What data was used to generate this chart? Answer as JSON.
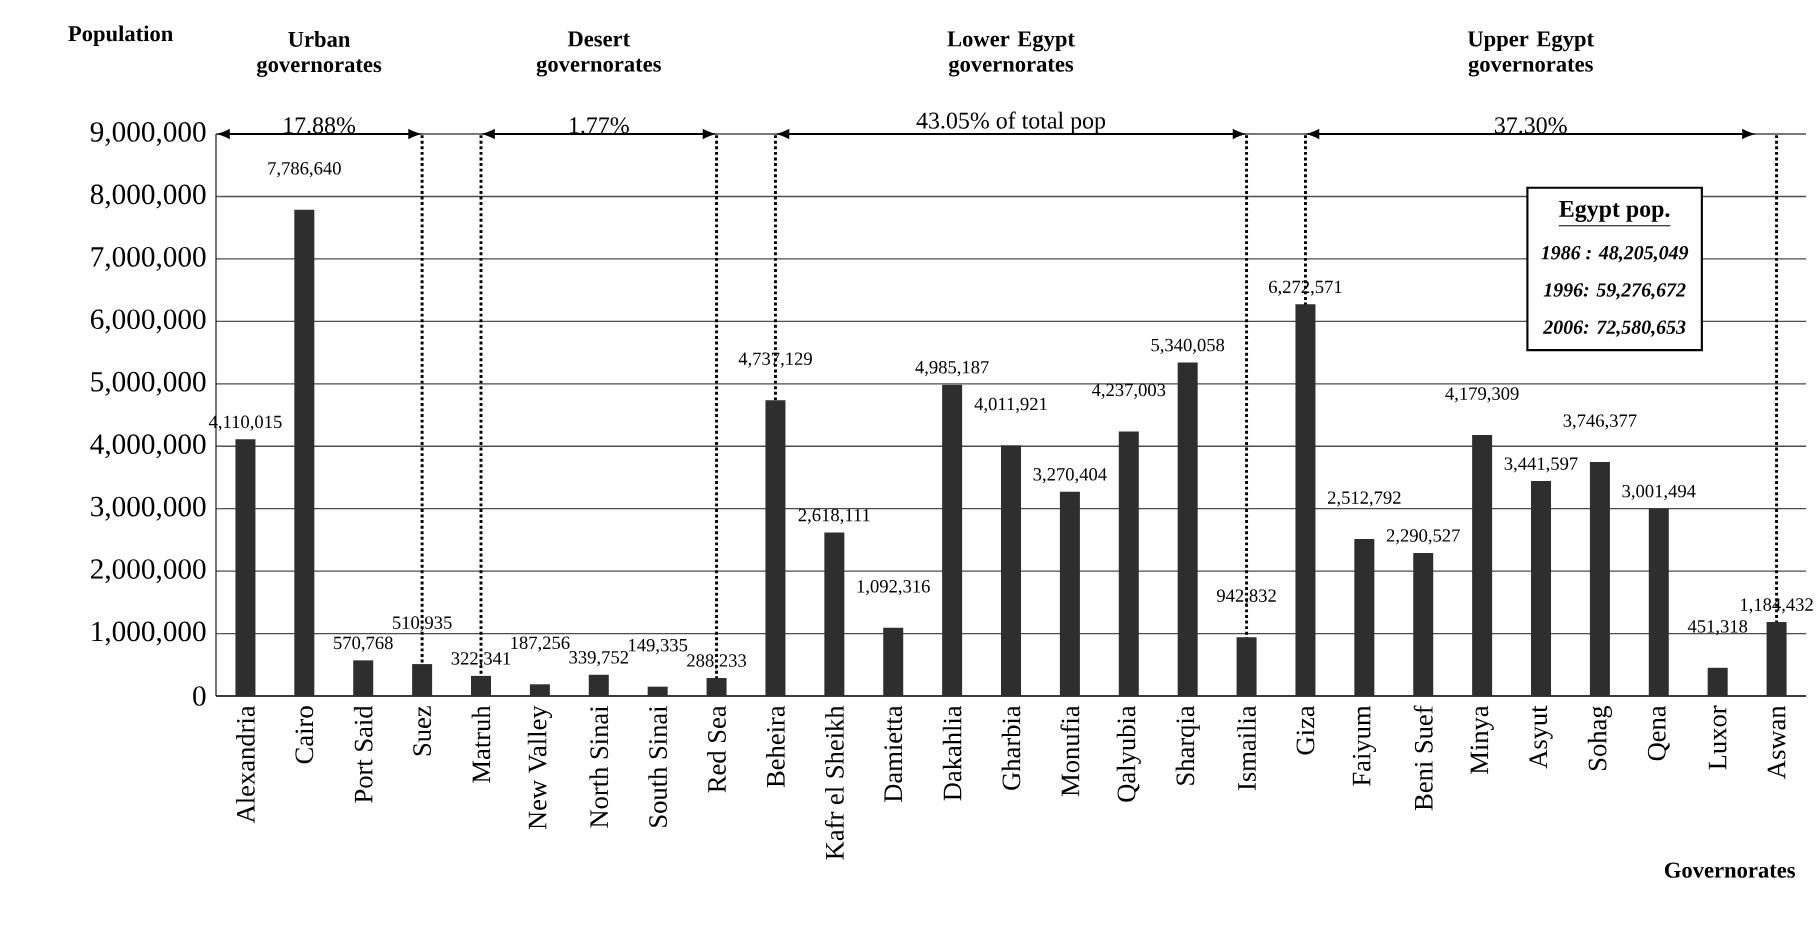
{
  "chart_data": {
    "type": "bar",
    "xlabel": "Governorates",
    "ylabel": "Population",
    "categories": [
      "Alexandria",
      "Cairo",
      "Port Said",
      "Suez",
      "Matruh",
      "New Valley",
      "North Sinai",
      "South Sinai",
      "Red Sea",
      "Beheira",
      "Kafr el Sheikh",
      "Damietta",
      "Dakahlia",
      "Gharbia",
      "Monufia",
      "Qalyubia",
      "Sharqia",
      "Ismailia",
      "Giza",
      "Faiyum",
      "Beni Suef",
      "Minya",
      "Asyut",
      "Sohag",
      "Qena",
      "Luxor",
      "Aswan"
    ],
    "values": [
      4110015,
      7786640,
      570768,
      510935,
      322341,
      187256,
      339752,
      149335,
      288233,
      4737129,
      2618111,
      1092316,
      4985187,
      4011921,
      3270404,
      4237003,
      5340058,
      942832,
      6272571,
      2512792,
      2290527,
      4179309,
      3441597,
      3746377,
      3001494,
      451318,
      1184432
    ],
    "value_labels": [
      "4,110,015",
      "7,786,640",
      "570,768",
      "510,935",
      "322,341",
      "187,256",
      "339,752",
      "149,335",
      "288,233",
      "4,737,129",
      "2,618,111",
      "1,092,316",
      "4,985,187",
      "4,011,921",
      "3,270,404",
      "4,237,003",
      "5,340,058",
      "942,832",
      "6,272,571",
      "2,512,792",
      "2,290,527",
      "4,179,309",
      "3,441,597",
      "3,746,377",
      "3,001,494",
      "451,318",
      "1,184,432"
    ],
    "color": "#2e2e2e",
    "ylim": [
      0,
      9000000
    ],
    "yticks": [
      {
        "value": 0,
        "label": "0"
      },
      {
        "value": 1000000,
        "label": "1,000,000"
      },
      {
        "value": 2000000,
        "label": "2,000,000"
      },
      {
        "value": 3000000,
        "label": "3,000,000"
      },
      {
        "value": 4000000,
        "label": "4,000,000"
      },
      {
        "value": 5000000,
        "label": "5,000,000"
      },
      {
        "value": 6000000,
        "label": "6,000,000"
      },
      {
        "value": 7000000,
        "label": "7,000,000"
      },
      {
        "value": 8000000,
        "label": "8,000,000"
      },
      {
        "value": 9000000,
        "label": "9,000,000"
      }
    ],
    "grid": "y",
    "ref_lines": [
      {
        "axis": "x",
        "value": "Suez",
        "line_style": "dotted"
      },
      {
        "axis": "x",
        "value": "Matruh",
        "line_style": "dotted"
      },
      {
        "axis": "x",
        "value": "Red Sea",
        "line_style": "dotted"
      },
      {
        "axis": "x",
        "value": "Beheira",
        "line_style": "dotted"
      },
      {
        "axis": "x",
        "value": "Ismailia",
        "line_style": "dotted"
      },
      {
        "axis": "x",
        "value": "Giza",
        "line_style": "dotted"
      },
      {
        "axis": "x",
        "value": "Aswan",
        "line_style": "dotted"
      }
    ],
    "annotations": [
      "Urban governorates",
      "Desert governorates",
      "Lower Egypt governorates",
      "Upper Egypt governorates",
      "17.88%",
      "1.77%",
      "43.05%  of total pop",
      "37.30%",
      "Egypt pop.",
      "1986 : 48,205,049",
      "1996: 59,276,672",
      "2006: 72,580,653"
    ]
  }
}
